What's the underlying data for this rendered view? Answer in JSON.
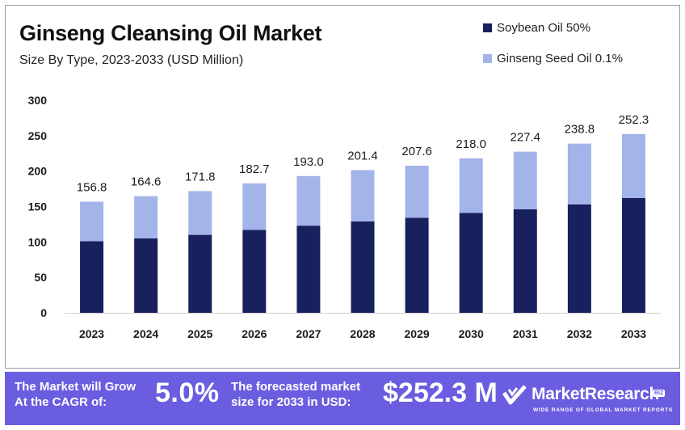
{
  "header": {
    "title": "Ginseng Cleansing Oil Market",
    "subtitle": "Size By Type, 2023-2033 (USD Million)"
  },
  "legend": [
    {
      "label": "Soybean Oil 50%",
      "color": "#19205e"
    },
    {
      "label": "Ginseng Seed Oil 0.1%",
      "color": "#a3b4e8"
    }
  ],
  "chart_data": {
    "type": "bar",
    "stacked": true,
    "title": "Ginseng Cleansing Oil Market",
    "subtitle": "Size By Type, 2023-2033 (USD Million)",
    "categories": [
      "2023",
      "2024",
      "2025",
      "2026",
      "2027",
      "2028",
      "2029",
      "2030",
      "2031",
      "2032",
      "2033"
    ],
    "series": [
      {
        "name": "Soybean Oil 50%",
        "color": "#19205e",
        "values": [
          101,
          105,
          110,
          117,
          123,
          129,
          134,
          141,
          146,
          153,
          162
        ]
      },
      {
        "name": "Ginseng Seed Oil 0.1%",
        "color": "#a3b4e8",
        "values": [
          55.8,
          59.6,
          61.8,
          65.7,
          70.0,
          72.4,
          73.6,
          77.0,
          81.4,
          85.8,
          90.3
        ]
      }
    ],
    "totals": [
      "156.8",
      "164.6",
      "171.8",
      "182.7",
      "193.0",
      "201.4",
      "207.6",
      "218.0",
      "227.4",
      "238.8",
      "252.3"
    ],
    "yticks": [
      "0",
      "50",
      "100",
      "150",
      "200",
      "250",
      "300"
    ],
    "ylim": [
      0,
      300
    ],
    "grid": false,
    "legend_position": "top-right"
  },
  "banner": {
    "cagr_label": "The Market will Grow\nAt the CAGR of:",
    "cagr_value": "5.0%",
    "forecast_label": "The forecasted market\nsize for 2033 in USD:",
    "forecast_value": "$252.3 M",
    "brand_name": "MarketResearch",
    "brand_badge": "BIZ",
    "brand_tagline": "WIDE RANGE OF GLOBAL MARKET REPORTS",
    "background_color": "#6b5de0"
  }
}
